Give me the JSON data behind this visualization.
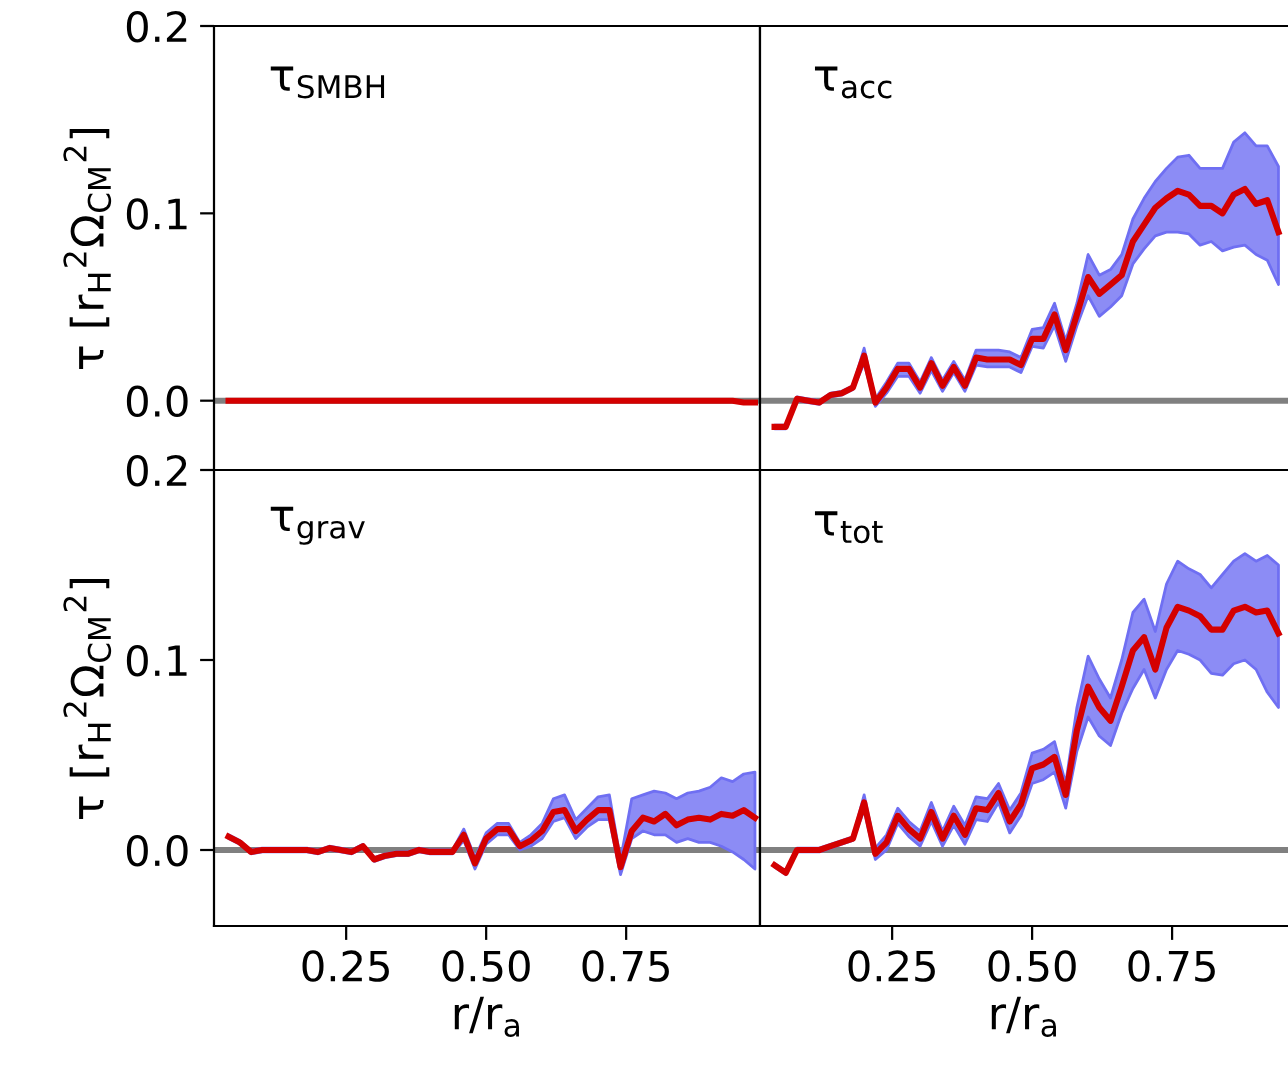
{
  "chart_data": [
    {
      "type": "line",
      "title": "τ$_{SMBH}$",
      "ylabel": "τ [r$_{H}$$^{2}$Ω$_{CM}$$^{2}$]",
      "x": [
        0.04,
        0.06,
        0.08,
        0.1,
        0.12,
        0.14,
        0.16,
        0.18,
        0.2,
        0.22,
        0.24,
        0.26,
        0.28,
        0.3,
        0.32,
        0.34,
        0.36,
        0.38,
        0.4,
        0.42,
        0.44,
        0.46,
        0.48,
        0.5,
        0.52,
        0.54,
        0.56,
        0.58,
        0.6,
        0.62,
        0.64,
        0.66,
        0.68,
        0.7,
        0.72,
        0.74,
        0.76,
        0.78,
        0.8,
        0.82,
        0.84,
        0.86,
        0.88,
        0.9,
        0.92,
        0.94,
        0.96,
        0.98
      ],
      "series": [
        {
          "color": "#d40000",
          "values": [
            0,
            0,
            0,
            0,
            0,
            0,
            0,
            0,
            0,
            0,
            0,
            0,
            0,
            0,
            0,
            0,
            0,
            0,
            0,
            0,
            0,
            0,
            0,
            0,
            0,
            0,
            0,
            0,
            0,
            0,
            0,
            0,
            0,
            0,
            0,
            0,
            0,
            0,
            0,
            0,
            0,
            0,
            0,
            0,
            0,
            0,
            -0.001,
            -0.001
          ]
        }
      ],
      "xlim": [
        0.014,
        0.989
      ],
      "ylim": [
        -0.037,
        0.2
      ],
      "xticks": [
        {
          "value": 0.25,
          "label": null
        },
        {
          "value": 0.5,
          "label": null
        },
        {
          "value": 0.75,
          "label": null
        }
      ],
      "yticks": [
        {
          "value": 0.0,
          "label": "0.0"
        },
        {
          "value": 0.1,
          "label": "0.1"
        },
        {
          "value": 0.2,
          "label": "0.2"
        }
      ],
      "tick_labels": "y",
      "ref_lines": [
        {
          "axis": "y",
          "value": 0,
          "color": "#808080"
        }
      ],
      "grid": false,
      "legend": false
    },
    {
      "type": "line",
      "title": "τ$_{acc}$",
      "x": [
        0.04,
        0.06,
        0.08,
        0.1,
        0.12,
        0.14,
        0.16,
        0.18,
        0.2,
        0.22,
        0.24,
        0.26,
        0.28,
        0.3,
        0.32,
        0.34,
        0.36,
        0.38,
        0.4,
        0.42,
        0.44,
        0.46,
        0.48,
        0.5,
        0.52,
        0.54,
        0.56,
        0.58,
        0.6,
        0.62,
        0.64,
        0.66,
        0.68,
        0.7,
        0.72,
        0.74,
        0.76,
        0.78,
        0.8,
        0.82,
        0.84,
        0.86,
        0.88,
        0.9,
        0.92,
        0.94
      ],
      "series": [
        {
          "color": "#d40000",
          "values": [
            -0.014,
            -0.014,
            0.001,
            0.0,
            -0.001,
            0.003,
            0.004,
            0.007,
            0.024,
            -0.001,
            0.007,
            0.017,
            0.017,
            0.007,
            0.02,
            0.008,
            0.018,
            0.008,
            0.023,
            0.022,
            0.022,
            0.022,
            0.019,
            0.033,
            0.033,
            0.046,
            0.027,
            0.046,
            0.066,
            0.057,
            0.062,
            0.067,
            0.085,
            0.094,
            0.103,
            0.108,
            0.112,
            0.11,
            0.104,
            0.104,
            0.1,
            0.11,
            0.113,
            0.105,
            0.107,
            0.09
          ],
          "upper": [
            -0.013,
            -0.013,
            0.002,
            0.001,
            0.0,
            0.004,
            0.005,
            0.008,
            0.028,
            0.001,
            0.01,
            0.02,
            0.02,
            0.01,
            0.023,
            0.011,
            0.021,
            0.011,
            0.027,
            0.027,
            0.027,
            0.026,
            0.023,
            0.038,
            0.039,
            0.052,
            0.032,
            0.052,
            0.078,
            0.067,
            0.07,
            0.078,
            0.097,
            0.108,
            0.117,
            0.124,
            0.13,
            0.131,
            0.124,
            0.124,
            0.124,
            0.138,
            0.143,
            0.136,
            0.136,
            0.125
          ],
          "lower": [
            -0.015,
            -0.015,
            0.0,
            -0.001,
            -0.002,
            0.002,
            0.003,
            0.006,
            0.02,
            -0.003,
            0.004,
            0.013,
            0.013,
            0.004,
            0.016,
            0.005,
            0.015,
            0.005,
            0.019,
            0.018,
            0.018,
            0.018,
            0.015,
            0.029,
            0.028,
            0.04,
            0.021,
            0.04,
            0.056,
            0.045,
            0.05,
            0.056,
            0.073,
            0.081,
            0.088,
            0.09,
            0.09,
            0.089,
            0.083,
            0.085,
            0.08,
            0.082,
            0.083,
            0.078,
            0.075,
            0.062
          ]
        }
      ],
      "xlim": [
        0.014,
        0.957
      ],
      "ylim": [
        -0.037,
        0.2
      ],
      "xticks": [
        {
          "value": 0.25,
          "label": null
        },
        {
          "value": 0.5,
          "label": null
        },
        {
          "value": 0.75,
          "label": null
        }
      ],
      "yticks": [
        {
          "value": 0.0,
          "label": null
        },
        {
          "value": 0.1,
          "label": null
        },
        {
          "value": 0.2,
          "label": null
        }
      ],
      "tick_labels": false,
      "ref_lines": [
        {
          "axis": "y",
          "value": 0,
          "color": "#808080"
        }
      ],
      "grid": false,
      "legend": false
    },
    {
      "type": "line",
      "title": "τ$_{grav}$",
      "ylabel": "τ [r$_{H}$$^{2}$Ω$_{CM}$$^{2}$]",
      "xlabel": "r/r$_{a}$",
      "x": [
        0.04,
        0.06,
        0.08,
        0.1,
        0.12,
        0.14,
        0.16,
        0.18,
        0.2,
        0.22,
        0.24,
        0.26,
        0.28,
        0.3,
        0.32,
        0.34,
        0.36,
        0.38,
        0.4,
        0.42,
        0.44,
        0.46,
        0.48,
        0.5,
        0.52,
        0.54,
        0.56,
        0.58,
        0.6,
        0.62,
        0.64,
        0.66,
        0.68,
        0.7,
        0.72,
        0.74,
        0.76,
        0.78,
        0.8,
        0.82,
        0.84,
        0.86,
        0.88,
        0.9,
        0.92,
        0.94,
        0.96,
        0.98
      ],
      "series": [
        {
          "color": "#d40000",
          "values": [
            0.007,
            0.004,
            -0.001,
            0.0,
            0.0,
            0.0,
            0.0,
            0.0,
            -0.001,
            0.001,
            0.0,
            -0.001,
            0.002,
            -0.005,
            -0.003,
            -0.002,
            -0.002,
            0.0,
            -0.001,
            -0.001,
            -0.001,
            0.008,
            -0.007,
            0.006,
            0.011,
            0.011,
            0.002,
            0.005,
            0.01,
            0.02,
            0.021,
            0.01,
            0.016,
            0.021,
            0.021,
            -0.009,
            0.01,
            0.017,
            0.015,
            0.019,
            0.013,
            0.016,
            0.017,
            0.016,
            0.019,
            0.018,
            0.021,
            0.017
          ],
          "upper": [
            0.008,
            0.005,
            0.0,
            0.001,
            0.001,
            0.001,
            0.001,
            0.001,
            0.0,
            0.002,
            0.001,
            0.0,
            0.003,
            -0.004,
            -0.002,
            -0.001,
            -0.001,
            0.001,
            0.0,
            0.0,
            0.0,
            0.011,
            -0.004,
            0.009,
            0.014,
            0.014,
            0.004,
            0.008,
            0.014,
            0.027,
            0.029,
            0.016,
            0.022,
            0.028,
            0.029,
            -0.005,
            0.027,
            0.029,
            0.031,
            0.03,
            0.027,
            0.03,
            0.031,
            0.033,
            0.038,
            0.036,
            0.04,
            0.041
          ],
          "lower": [
            0.006,
            0.003,
            -0.002,
            -0.001,
            -0.001,
            -0.001,
            -0.001,
            -0.001,
            -0.002,
            0.0,
            -0.001,
            -0.002,
            0.001,
            -0.006,
            -0.004,
            -0.003,
            -0.003,
            -0.001,
            -0.002,
            -0.002,
            -0.002,
            0.005,
            -0.01,
            0.003,
            0.008,
            0.008,
            0.0,
            0.002,
            0.006,
            0.015,
            0.017,
            0.006,
            0.012,
            0.016,
            0.016,
            -0.013,
            0.006,
            0.01,
            0.008,
            0.008,
            0.004,
            0.006,
            0.004,
            0.004,
            0.002,
            -0.001,
            -0.005,
            -0.01
          ]
        }
      ],
      "xlim": [
        0.014,
        0.989
      ],
      "ylim": [
        -0.04,
        0.2
      ],
      "xticks": [
        {
          "value": 0.25,
          "label": "0.25"
        },
        {
          "value": 0.5,
          "label": "0.50"
        },
        {
          "value": 0.75,
          "label": "0.75"
        }
      ],
      "yticks": [
        {
          "value": 0.0,
          "label": "0.0"
        },
        {
          "value": 0.1,
          "label": "0.1"
        },
        {
          "value": 0.2,
          "label": "0.2"
        }
      ],
      "ref_lines": [
        {
          "axis": "y",
          "value": 0,
          "color": "#808080"
        }
      ],
      "grid": false,
      "legend": false
    },
    {
      "type": "line",
      "title": "τ$_{tot}$",
      "xlabel": "r/r$_{a}$",
      "x": [
        0.04,
        0.06,
        0.08,
        0.1,
        0.12,
        0.14,
        0.16,
        0.18,
        0.2,
        0.22,
        0.24,
        0.26,
        0.28,
        0.3,
        0.32,
        0.34,
        0.36,
        0.38,
        0.4,
        0.42,
        0.44,
        0.46,
        0.48,
        0.5,
        0.52,
        0.54,
        0.56,
        0.58,
        0.6,
        0.62,
        0.64,
        0.66,
        0.68,
        0.7,
        0.72,
        0.74,
        0.76,
        0.78,
        0.8,
        0.82,
        0.84,
        0.86,
        0.88,
        0.9,
        0.92,
        0.94
      ],
      "series": [
        {
          "color": "#d40000",
          "values": [
            -0.008,
            -0.012,
            0.0,
            0.0,
            0.0,
            0.002,
            0.004,
            0.006,
            0.025,
            -0.002,
            0.004,
            0.018,
            0.011,
            0.006,
            0.02,
            0.006,
            0.018,
            0.008,
            0.022,
            0.021,
            0.03,
            0.015,
            0.024,
            0.043,
            0.045,
            0.049,
            0.029,
            0.063,
            0.086,
            0.075,
            0.068,
            0.086,
            0.105,
            0.112,
            0.095,
            0.117,
            0.128,
            0.126,
            0.123,
            0.116,
            0.116,
            0.126,
            0.128,
            0.125,
            0.126,
            0.114
          ],
          "upper": [
            -0.007,
            -0.011,
            0.001,
            0.001,
            0.001,
            0.003,
            0.005,
            0.007,
            0.029,
            0.001,
            0.008,
            0.022,
            0.015,
            0.01,
            0.025,
            0.01,
            0.023,
            0.013,
            0.028,
            0.027,
            0.035,
            0.021,
            0.03,
            0.051,
            0.053,
            0.057,
            0.035,
            0.075,
            0.102,
            0.09,
            0.08,
            0.1,
            0.125,
            0.132,
            0.115,
            0.14,
            0.152,
            0.148,
            0.145,
            0.138,
            0.145,
            0.152,
            0.156,
            0.152,
            0.155,
            0.15
          ],
          "lower": [
            -0.009,
            -0.013,
            -0.001,
            -0.001,
            -0.001,
            0.001,
            0.003,
            0.005,
            0.021,
            -0.005,
            0.0,
            0.014,
            0.007,
            0.002,
            0.015,
            0.002,
            0.013,
            0.003,
            0.016,
            0.015,
            0.025,
            0.009,
            0.018,
            0.035,
            0.037,
            0.041,
            0.022,
            0.052,
            0.07,
            0.06,
            0.055,
            0.072,
            0.085,
            0.095,
            0.08,
            0.095,
            0.105,
            0.103,
            0.1,
            0.093,
            0.092,
            0.098,
            0.1,
            0.095,
            0.083,
            0.075
          ]
        }
      ],
      "xlim": [
        0.014,
        0.957
      ],
      "ylim": [
        -0.04,
        0.2
      ],
      "xticks": [
        {
          "value": 0.25,
          "label": "0.25"
        },
        {
          "value": 0.5,
          "label": "0.50"
        },
        {
          "value": 0.75,
          "label": "0.75"
        }
      ],
      "yticks": [
        {
          "value": 0.0,
          "label": null
        },
        {
          "value": 0.1,
          "label": null
        },
        {
          "value": 0.2,
          "label": null
        }
      ],
      "tick_labels": "x",
      "ref_lines": [
        {
          "axis": "y",
          "value": 0,
          "color": "#808080"
        }
      ],
      "grid": false,
      "legend": false
    }
  ]
}
